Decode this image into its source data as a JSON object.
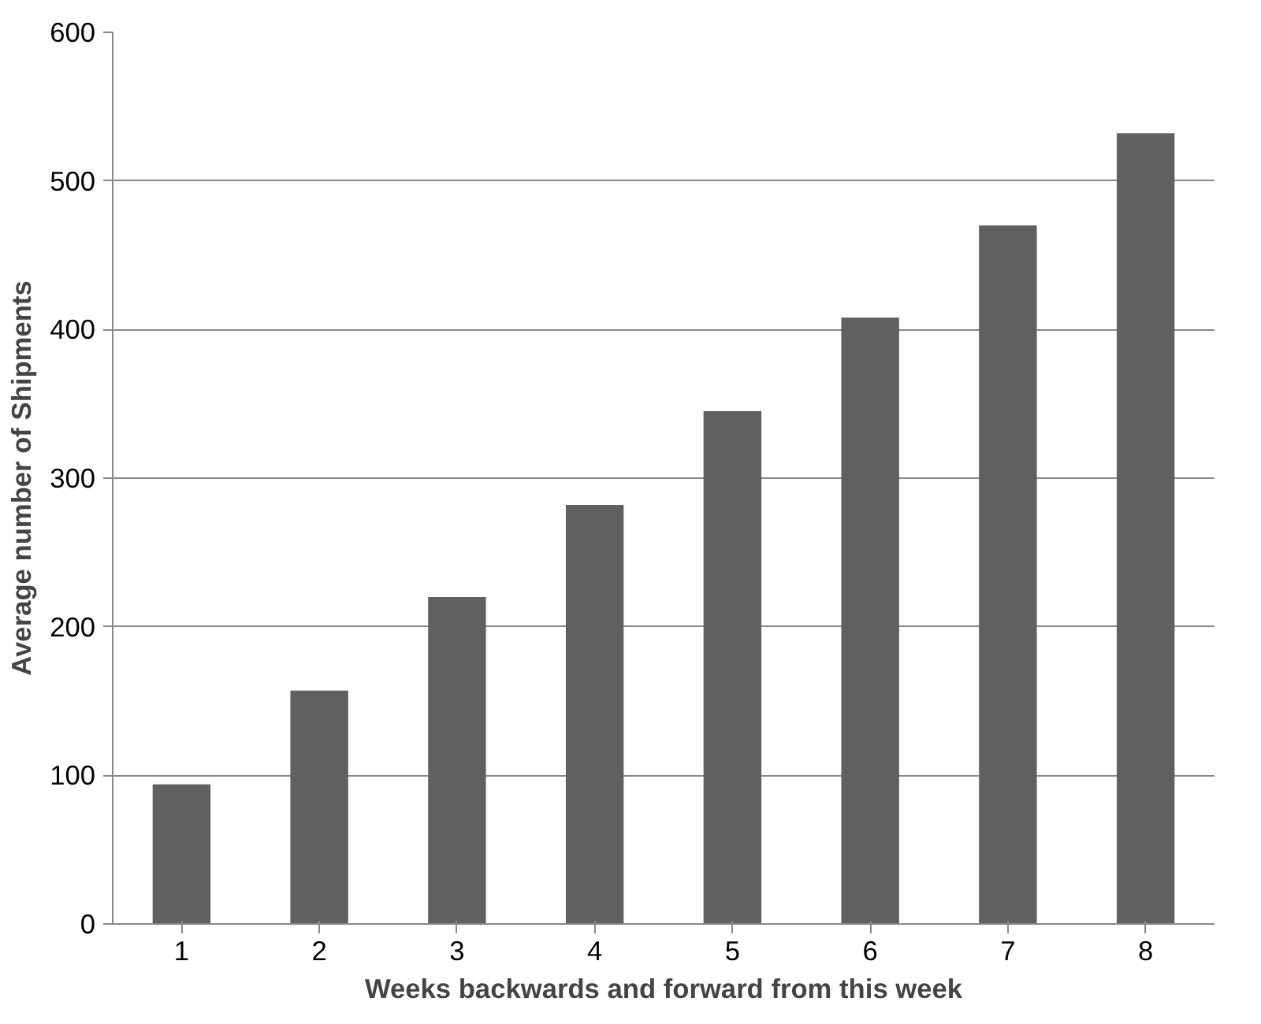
{
  "chart_data": {
    "type": "bar",
    "xlabel": "Weeks backwards and forward from this week",
    "ylabel": "Average number of Shipments",
    "categories": [
      "1",
      "2",
      "3",
      "4",
      "5",
      "6",
      "7",
      "8"
    ],
    "values": [
      94,
      157,
      220,
      282,
      345,
      408,
      470,
      532
    ],
    "color": "#606060",
    "ylim": [
      0,
      600
    ],
    "yticks": [
      0,
      100,
      200,
      300,
      400,
      500,
      600
    ],
    "grid": "y"
  }
}
